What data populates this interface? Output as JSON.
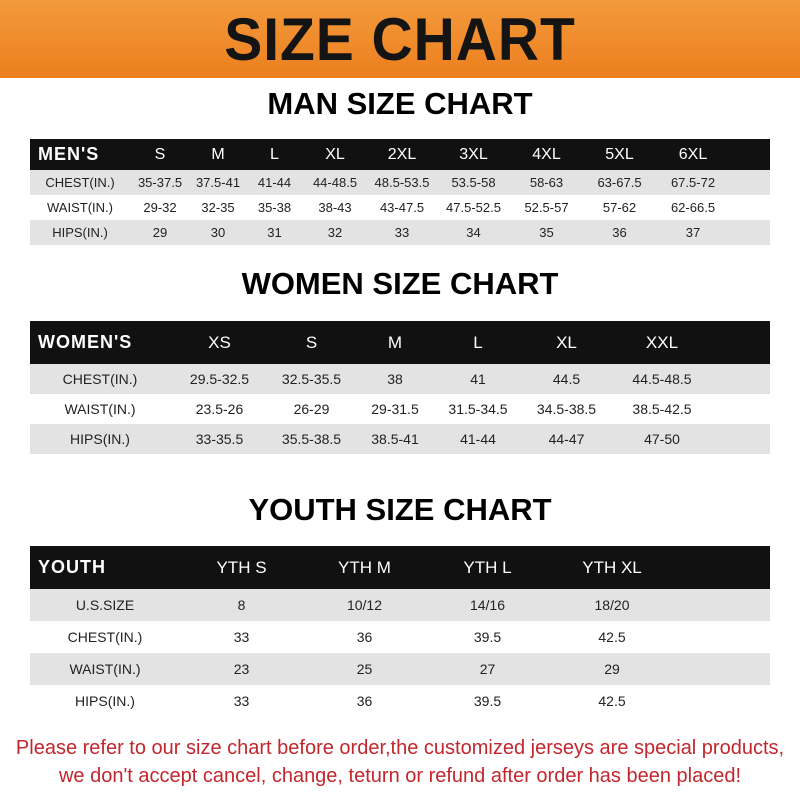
{
  "title": "SIZE CHART",
  "colors": {
    "banner": "#ee8a2a",
    "header_row": "#111111",
    "stripe": "#e3e3e3",
    "note": "#c1272d"
  },
  "men": {
    "title": "MAN SIZE CHART",
    "header": [
      "MEN'S",
      "S",
      "M",
      "L",
      "XL",
      "2XL",
      "3XL",
      "4XL",
      "5XL",
      "6XL"
    ],
    "rows": [
      [
        "CHEST(IN.)",
        "35-37.5",
        "37.5-41",
        "41-44",
        "44-48.5",
        "48.5-53.5",
        "53.5-58",
        "58-63",
        "63-67.5",
        "67.5-72"
      ],
      [
        "WAIST(IN.)",
        "29-32",
        "32-35",
        "35-38",
        "38-43",
        "43-47.5",
        "47.5-52.5",
        "52.5-57",
        "57-62",
        "62-66.5"
      ],
      [
        "HIPS(IN.)",
        "29",
        "30",
        "31",
        "32",
        "33",
        "34",
        "35",
        "36",
        "37"
      ]
    ]
  },
  "women": {
    "title": "WOMEN SIZE CHART",
    "header": [
      "WOMEN'S",
      "XS",
      "S",
      "M",
      "L",
      "XL",
      "XXL"
    ],
    "rows": [
      [
        "CHEST(IN.)",
        "29.5-32.5",
        "32.5-35.5",
        "38",
        "41",
        "44.5",
        "44.5-48.5"
      ],
      [
        "WAIST(IN.)",
        "23.5-26",
        "26-29",
        "29-31.5",
        "31.5-34.5",
        "34.5-38.5",
        "38.5-42.5"
      ],
      [
        "HIPS(IN.)",
        "33-35.5",
        "35.5-38.5",
        "38.5-41",
        "41-44",
        "44-47",
        "47-50"
      ]
    ]
  },
  "youth": {
    "title": "YOUTH SIZE CHART",
    "header": [
      "YOUTH",
      "YTH S",
      "YTH M",
      "YTH L",
      "YTH XL"
    ],
    "rows": [
      [
        "U.S.SIZE",
        "8",
        "10/12",
        "14/16",
        "18/20"
      ],
      [
        "CHEST(IN.)",
        "33",
        "36",
        "39.5",
        "42.5"
      ],
      [
        "WAIST(IN.)",
        "23",
        "25",
        "27",
        "29"
      ],
      [
        "HIPS(IN.)",
        "33",
        "36",
        "39.5",
        "42.5"
      ]
    ]
  },
  "note": {
    "line1": "Please refer to our size chart before order,the customized jerseys are special products,",
    "line2": "we don't accept cancel, change, teturn or refund after order has been placed!"
  }
}
